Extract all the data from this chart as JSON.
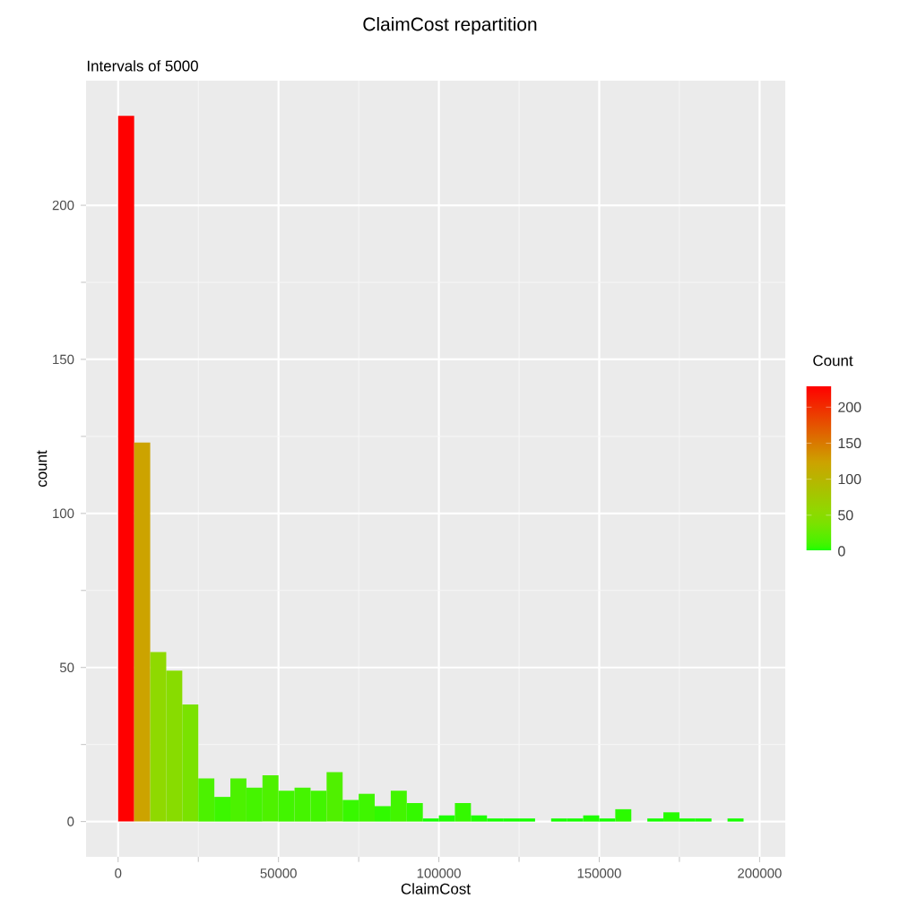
{
  "chart_data": {
    "type": "histogram",
    "title": "ClaimCost repartition",
    "subtitle": "Intervals of 5000",
    "xlabel": "ClaimCost",
    "ylabel": "count",
    "clabel": "Count",
    "bins": [
      0,
      5000,
      10000,
      15000,
      20000,
      25000,
      30000,
      35000,
      40000,
      45000,
      50000,
      55000,
      60000,
      65000,
      70000,
      75000,
      80000,
      85000,
      90000,
      95000,
      100000,
      105000,
      110000,
      115000,
      120000,
      125000,
      130000,
      135000,
      140000,
      145000,
      150000,
      155000,
      160000,
      165000,
      170000,
      175000,
      180000,
      185000,
      190000,
      195000
    ],
    "values": [
      229,
      123,
      55,
      49,
      38,
      14,
      8,
      14,
      11,
      15,
      10,
      11,
      10,
      16,
      7,
      9,
      5,
      10,
      6,
      1,
      2,
      6,
      2,
      1,
      1,
      1,
      0,
      1,
      1,
      2,
      1,
      4,
      0,
      1,
      3,
      1,
      1,
      0,
      1
    ],
    "colors": [
      "#ff0000",
      "#cca300",
      "#8fd900",
      "#88dc00",
      "#7ae200",
      "#4cf200",
      "#3cf700",
      "#4cf200",
      "#45f400",
      "#4ef100",
      "#42f500",
      "#45f400",
      "#42f500",
      "#50f000",
      "#38f800",
      "#3ff600",
      "#30fa00",
      "#42f500",
      "#34f900",
      "#15fe00",
      "#1efd00",
      "#34f900",
      "#1efd00",
      "#15fe00",
      "#15fe00",
      "#15fe00",
      "#00ff00",
      "#15fe00",
      "#15fe00",
      "#1efd00",
      "#15fe00",
      "#2bfb00",
      "#00ff00",
      "#15fe00",
      "#25fc00",
      "#15fe00",
      "#15fe00",
      "#00ff00",
      "#15fe00"
    ],
    "xlim": [
      -10000,
      208000
    ],
    "ylim": [
      -11.45,
      240.45
    ],
    "xticks": [
      0,
      50000,
      100000,
      150000,
      200000
    ],
    "yticks": [
      0,
      50,
      100,
      150,
      200
    ],
    "clim": [
      0,
      229
    ],
    "cticks": [
      0,
      50,
      100,
      150,
      200
    ],
    "grid": true
  }
}
